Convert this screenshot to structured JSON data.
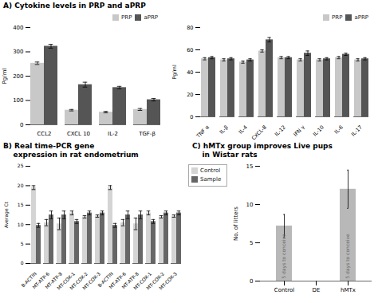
{
  "chart_data": [
    {
      "type": "bar",
      "title": "A) Cytokine levels in PRP and aPRP",
      "categories": [
        "CCL2",
        "CXCL 10",
        "IL-2",
        "TGF-β"
      ],
      "series": [
        {
          "name": "PRP",
          "color": "#c8c8c8",
          "values": [
            253,
            60,
            52,
            63
          ],
          "errors": [
            5,
            3,
            3,
            4
          ]
        },
        {
          "name": "aPRP",
          "color": "#555555",
          "values": [
            323,
            165,
            153,
            103
          ],
          "errors": [
            8,
            10,
            5,
            5
          ]
        }
      ],
      "ylabel": "Pg/ml",
      "ylim": [
        0,
        400
      ],
      "yticks": [
        0,
        100,
        200,
        300,
        400
      ],
      "grid": false,
      "legend": "upper right"
    },
    {
      "type": "bar",
      "categories": [
        "TNF α",
        "IL-β",
        "IL-4",
        "CXCL-8",
        "IL-12",
        "IFN γ",
        "IL-10",
        "IL-6",
        "IL-17"
      ],
      "series": [
        {
          "name": "PRP",
          "color": "#c8c8c8",
          "values": [
            52,
            51,
            49,
            59,
            53,
            51,
            51,
            53,
            51
          ],
          "errors": [
            1,
            1,
            1,
            1,
            1,
            1,
            1,
            1,
            1
          ]
        },
        {
          "name": "aPRP",
          "color": "#555555",
          "values": [
            53,
            52,
            51,
            69,
            53,
            57,
            52,
            56,
            52
          ],
          "errors": [
            1,
            1,
            1,
            2,
            1,
            2,
            1,
            1,
            1
          ]
        }
      ],
      "ylabel": "Pg/ml",
      "ylim": [
        0,
        80
      ],
      "yticks": [
        0,
        20,
        40,
        60,
        80
      ],
      "grid": false,
      "legend": "upper right"
    },
    {
      "type": "bar",
      "title": "B) Real time-PCR gene\n    expression in rat endometrium",
      "categories": [
        "B-ACTIN",
        "MT-ATP-6",
        "MT-ATP-8",
        "MT-COX-1",
        "MT-COX-2",
        "MT-COX-3",
        "B-ACTIN",
        "MT-ATP-6",
        "MT-ATP-8",
        "MT-COX-1",
        "MT-COX-2",
        "MT-COX-3"
      ],
      "series": [
        {
          "name": "Control",
          "color": "#d4d4d4",
          "values": [
            19.5,
            10.5,
            10.2,
            13.0,
            12.0,
            12.2,
            19.5,
            10.5,
            10.2,
            13.0,
            12.0,
            12.2
          ],
          "errors": [
            0.5,
            0.8,
            1.5,
            0.5,
            0.3,
            0.3,
            0.5,
            0.8,
            1.5,
            0.5,
            0.3,
            0.3
          ]
        },
        {
          "name": "Sample",
          "color": "#666666",
          "values": [
            9.8,
            12.5,
            12.5,
            10.8,
            13.0,
            13.0,
            9.8,
            12.5,
            12.5,
            10.8,
            13.0,
            13.0
          ],
          "errors": [
            0.5,
            1.0,
            1.0,
            0.5,
            0.5,
            0.5,
            0.5,
            1.0,
            1.0,
            0.5,
            0.5,
            0.5
          ]
        }
      ],
      "ylabel": "Average Ct",
      "ylim": [
        0,
        25
      ],
      "yticks": [
        0,
        5,
        10,
        15,
        20,
        25
      ],
      "grid": false,
      "legend": "right"
    },
    {
      "type": "bar",
      "title": "C) hMTx group improves Live pups\n    in Wistar rats",
      "categories": [
        "Control",
        "DE",
        "hMTx"
      ],
      "values": [
        7.2,
        0,
        12.0
      ],
      "errors": [
        1.5,
        0,
        2.5
      ],
      "color": "#b8b8b8",
      "ylabel": "No. of litters",
      "ylim": [
        0,
        15
      ],
      "yticks": [
        0,
        5,
        10,
        15
      ],
      "grid": false,
      "annotations": [
        {
          "text": "5 days to conceive",
          "x": "Control",
          "y": 0.3
        },
        {
          "text": "5 days to conceive",
          "x": "hMTx",
          "y": 0.3
        }
      ]
    }
  ]
}
